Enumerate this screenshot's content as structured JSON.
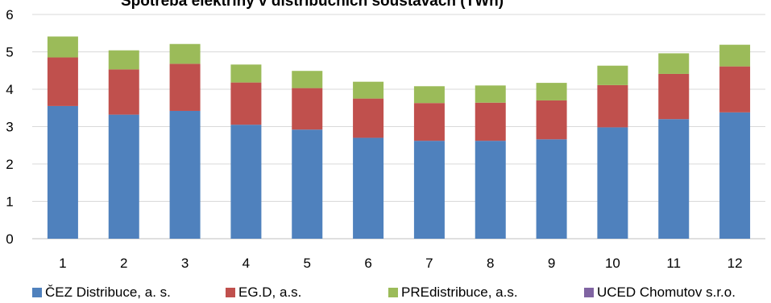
{
  "chart_data": {
    "type": "bar",
    "stacked": true,
    "title": "",
    "xlabel": "",
    "ylabel": "",
    "ylim": [
      0,
      6
    ],
    "yticks": [
      "0",
      "1",
      "2",
      "3",
      "4",
      "5",
      "6"
    ],
    "categories": [
      "1",
      "2",
      "3",
      "4",
      "5",
      "6",
      "7",
      "8",
      "9",
      "10",
      "11",
      "12"
    ],
    "grid": true,
    "legend_position": "bottom",
    "series": [
      {
        "name": "ČEZ Distribuce, a. s.",
        "color": "#4F81BD",
        "values": [
          3.55,
          3.32,
          3.42,
          3.05,
          2.92,
          2.7,
          2.62,
          2.62,
          2.66,
          2.98,
          3.2,
          3.38
        ]
      },
      {
        "name": "EG.D, a.s.",
        "color": "#C0504D",
        "values": [
          1.3,
          1.21,
          1.26,
          1.13,
          1.11,
          1.05,
          1.01,
          1.02,
          1.04,
          1.13,
          1.21,
          1.23
        ]
      },
      {
        "name": "PREdistribuce, a.s.",
        "color": "#9BBB59",
        "values": [
          0.56,
          0.51,
          0.53,
          0.48,
          0.46,
          0.45,
          0.45,
          0.46,
          0.47,
          0.52,
          0.55,
          0.58
        ]
      },
      {
        "name": "UCED Chomutov s.r.o.",
        "color": "#8064A2",
        "values": [
          0,
          0,
          0,
          0,
          0,
          0,
          0,
          0,
          0,
          0,
          0,
          0
        ]
      }
    ]
  },
  "title_visible_text": "Spotřeba elektřiny v distribučních soustavách (TWh)"
}
